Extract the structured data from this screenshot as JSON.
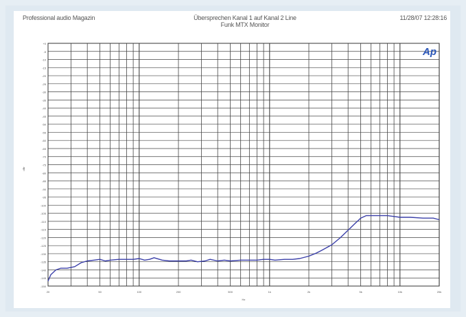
{
  "header": {
    "left": "Professional audio Magazin",
    "center_line1": "Übersprechen Kanal 1 auf Kanal 2 Line",
    "center_line2": "Funk MTX Monitor",
    "right": "11/28/07 12:28:16"
  },
  "logo": {
    "text": "Ap",
    "color": "#2a56b8"
  },
  "colors": {
    "trace": "#3a3fa8",
    "grid": "#444444",
    "frame": "#dfe9f1"
  },
  "chart_data": {
    "type": "line",
    "title": "Übersprechen Kanal 1 auf Kanal 2 Line",
    "subtitle": "Funk MTX Monitor",
    "xscale": "log",
    "xlim": [
      20,
      20000
    ],
    "ylim": [
      -150,
      0
    ],
    "xticks": [
      "20",
      "50",
      "100",
      "200",
      "500",
      "1k",
      "2k",
      "5k",
      "10k",
      "20k"
    ],
    "xtick_values": [
      20,
      50,
      100,
      200,
      500,
      1000,
      2000,
      5000,
      10000,
      20000
    ],
    "xlabel": "Hz",
    "ylabel": "dBr",
    "yticks": [
      "+0",
      "-5",
      "-10",
      "-15",
      "-20",
      "-25",
      "-30",
      "-35",
      "-40",
      "-45",
      "-50",
      "-55",
      "-60",
      "-65",
      "-70",
      "-75",
      "-80",
      "-85",
      "-90",
      "-95",
      "-100",
      "-105",
      "-110",
      "-115",
      "-120",
      "-125",
      "-130",
      "-135",
      "-140",
      "-145",
      "-150"
    ],
    "ytick_values": [
      0,
      -5,
      -10,
      -15,
      -20,
      -25,
      -30,
      -35,
      -40,
      -45,
      -50,
      -55,
      -60,
      -65,
      -70,
      -75,
      -80,
      -85,
      -90,
      -95,
      -100,
      -105,
      -110,
      -115,
      -120,
      -125,
      -130,
      -135,
      -140,
      -145,
      -150
    ],
    "grid": true,
    "series": [
      {
        "x": [
          20,
          21,
          23,
          25,
          28,
          32,
          36,
          40,
          45,
          50,
          55,
          60,
          70,
          80,
          90,
          100,
          110,
          120,
          130,
          150,
          170,
          200,
          230,
          250,
          280,
          320,
          350,
          400,
          450,
          500,
          600,
          700,
          800,
          900,
          1000,
          1100,
          1300,
          1500,
          1700,
          2000,
          2300,
          2500,
          3000,
          3500,
          4000,
          4500,
          5000,
          5500,
          6000,
          6500,
          7000,
          7500,
          8000,
          9000,
          10000,
          12000,
          15000,
          18000,
          20000
        ],
        "y": [
          -147,
          -143,
          -140,
          -139,
          -139,
          -138,
          -135.5,
          -134.5,
          -134,
          -133.5,
          -134.5,
          -134,
          -133.5,
          -133.5,
          -133.5,
          -133,
          -134,
          -133.5,
          -132.5,
          -134,
          -134.5,
          -134.5,
          -134.5,
          -134,
          -135,
          -134.5,
          -133.5,
          -134.5,
          -134,
          -134.5,
          -134,
          -134,
          -134,
          -133.5,
          -133.5,
          -134,
          -133.5,
          -133.5,
          -133,
          -131.5,
          -129.5,
          -128,
          -124.5,
          -120,
          -115.5,
          -111.5,
          -108,
          -106.5,
          -106.5,
          -106.5,
          -106.5,
          -106.5,
          -106.5,
          -107,
          -107.5,
          -107.5,
          -108,
          -108,
          -109
        ]
      }
    ]
  }
}
